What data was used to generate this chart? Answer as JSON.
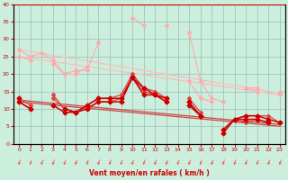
{
  "xlabel": "Vent moyen/en rafales ( km/h )",
  "background_color": "#cceedd",
  "grid_color": "#99bbbb",
  "x": [
    0,
    1,
    2,
    3,
    4,
    5,
    6,
    7,
    8,
    9,
    10,
    11,
    12,
    13,
    14,
    15,
    16,
    17,
    18,
    19,
    20,
    21,
    22,
    23
  ],
  "series": [
    {
      "color": "#ffaaaa",
      "linewidth": 0.8,
      "marker": "D",
      "markersize": 2.0,
      "data": [
        27,
        25,
        26,
        24,
        20,
        21,
        21,
        29,
        null,
        null,
        36,
        34,
        null,
        34,
        null,
        32,
        18,
        13,
        12,
        null,
        16,
        15,
        null,
        15
      ]
    },
    {
      "color": "#ffaaaa",
      "linewidth": 0.8,
      "marker": "D",
      "markersize": 2.0,
      "data": [
        25,
        24,
        null,
        23,
        20,
        20,
        22,
        null,
        null,
        null,
        null,
        null,
        null,
        null,
        null,
        18,
        13,
        12,
        null,
        null,
        16,
        16,
        null,
        14
      ]
    },
    {
      "color": "#dd4444",
      "linewidth": 0.9,
      "marker": "D",
      "markersize": 2.0,
      "data": [
        13,
        11,
        null,
        14,
        10,
        9,
        11,
        13,
        13,
        14,
        20,
        16,
        15,
        13,
        null,
        13,
        9,
        null,
        null,
        7,
        8,
        8,
        8,
        6
      ]
    },
    {
      "color": "#dd4444",
      "linewidth": 0.9,
      "marker": "D",
      "markersize": 2.0,
      "data": [
        12,
        10,
        null,
        13,
        10,
        9,
        10,
        12,
        12,
        13,
        19,
        15,
        14,
        12,
        null,
        12,
        8,
        null,
        null,
        7,
        6,
        7,
        6,
        null
      ]
    },
    {
      "color": "#cc0000",
      "linewidth": 1.1,
      "marker": "D",
      "markersize": 2.5,
      "data": [
        12,
        10,
        null,
        11,
        9,
        9,
        10,
        12,
        12,
        12,
        19,
        14,
        14,
        12,
        null,
        11,
        8,
        null,
        4,
        7,
        7,
        7,
        6,
        null
      ]
    },
    {
      "color": "#cc0000",
      "linewidth": 1.1,
      "marker": "D",
      "markersize": 2.5,
      "data": [
        13,
        null,
        null,
        null,
        10,
        9,
        11,
        13,
        13,
        13,
        19,
        16,
        14,
        13,
        null,
        12,
        8,
        null,
        3,
        7,
        8,
        8,
        7,
        6
      ]
    }
  ],
  "regression_lines": [
    {
      "color": "#ffbbbb",
      "linewidth": 0.9,
      "x0": 0,
      "y0": 27.0,
      "x1": 23,
      "y1": 14.5
    },
    {
      "color": "#ffbbbb",
      "linewidth": 0.9,
      "x0": 0,
      "y0": 25.0,
      "x1": 23,
      "y1": 14.0
    },
    {
      "color": "#cc4444",
      "linewidth": 0.9,
      "x0": 0,
      "y0": 12.5,
      "x1": 23,
      "y1": 5.5
    },
    {
      "color": "#cc4444",
      "linewidth": 0.9,
      "x0": 0,
      "y0": 12.0,
      "x1": 23,
      "y1": 5.0
    }
  ],
  "ylim": [
    0,
    40
  ],
  "yticks": [
    0,
    5,
    10,
    15,
    20,
    25,
    30,
    35,
    40
  ],
  "xticks": [
    0,
    1,
    2,
    3,
    4,
    5,
    6,
    7,
    8,
    9,
    10,
    11,
    12,
    13,
    14,
    15,
    16,
    17,
    18,
    19,
    20,
    21,
    22,
    23
  ],
  "arrow_color": "#ee5555",
  "xlabel_color": "#cc0000",
  "tick_color": "#cc0000",
  "axis_color": "#cc0000"
}
